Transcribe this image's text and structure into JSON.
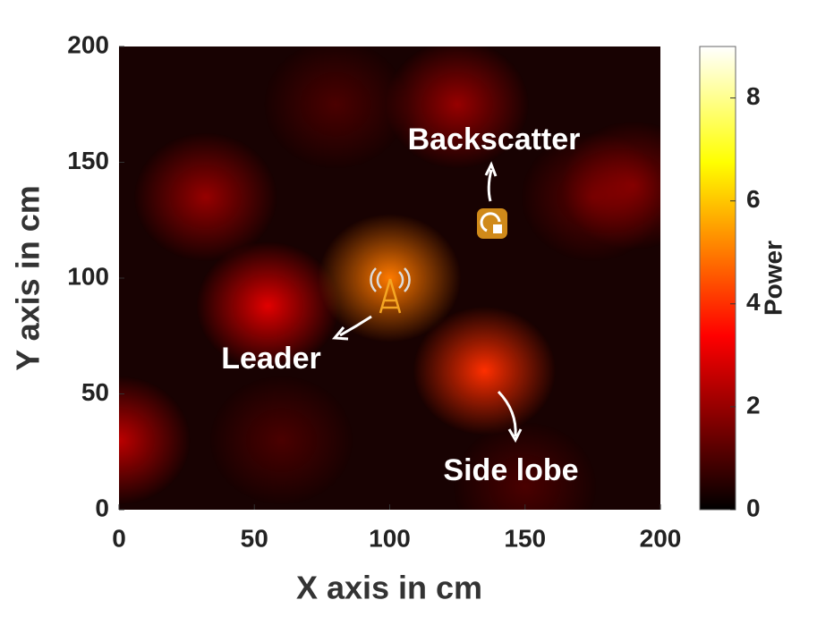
{
  "chart_data": {
    "type": "heatmap",
    "x_label": "X axis in cm",
    "y_label": "Y axis in cm",
    "colorbar_label": "Power",
    "xlim": [
      0,
      200
    ],
    "ylim": [
      0,
      200
    ],
    "xticks": [
      0,
      50,
      100,
      150,
      200
    ],
    "yticks": [
      0,
      50,
      100,
      150,
      200
    ],
    "clim": [
      0,
      9
    ],
    "cticks": [
      0,
      2,
      4,
      6,
      8
    ],
    "colormap": "hot",
    "hotspots": {
      "x": [
        100,
        135,
        55,
        32,
        125,
        0,
        175,
        190,
        80,
        60,
        150
      ],
      "y": [
        100,
        60,
        88,
        135,
        175,
        30,
        135,
        140,
        175,
        30,
        10
      ],
      "values": [
        5,
        4,
        3,
        2,
        2,
        2.5,
        1.2,
        1.5,
        1,
        1,
        1
      ]
    },
    "annotations": [
      "Backscatter",
      "Leader",
      "Side lobe"
    ]
  }
}
